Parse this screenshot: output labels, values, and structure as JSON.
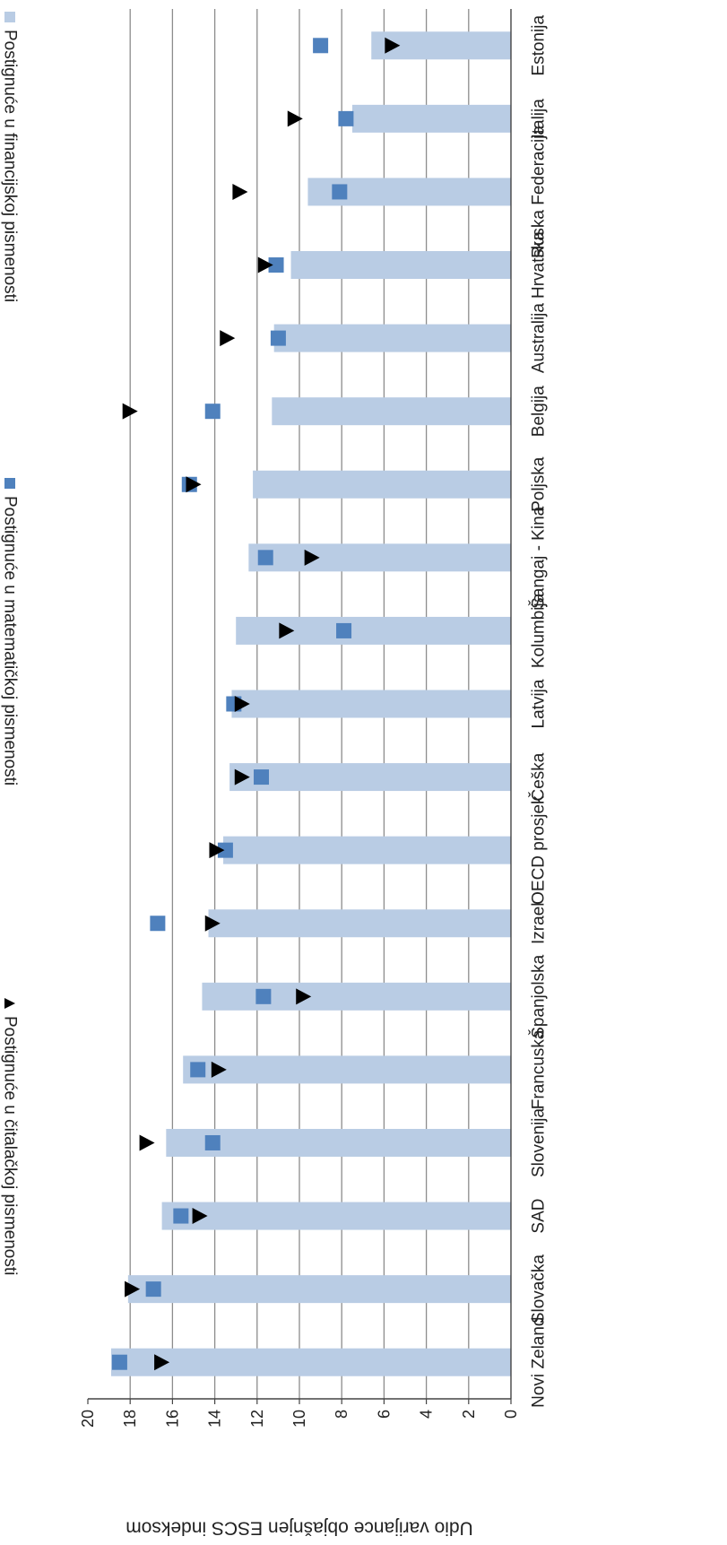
{
  "chart_data": {
    "type": "bar",
    "orientation": "rotated-180",
    "ylabel": "Udio varijance objašnjen ESCS indeksom",
    "xlabel": "",
    "ylim": [
      0,
      20
    ],
    "yticks": [
      "0",
      "2",
      "4",
      "6",
      "8",
      "10",
      "12",
      "14",
      "16",
      "18",
      "20"
    ],
    "grid": true,
    "legend_position": "right",
    "categories": [
      "Estonija",
      "Italija",
      "Ruska Federacija",
      "Hrvatska",
      "Australija",
      "Belgija",
      "Poljska",
      "Šangaj - Kina",
      "Kolumbija",
      "Latvija",
      "Češka",
      "OECD prosjek",
      "Izrael",
      "Španjolska",
      "Francuska",
      "Slovenija",
      "SAD",
      "Slovačka",
      "Novi Zeland"
    ],
    "series": [
      {
        "name": "Postignuće u financijskoj pismenosti",
        "marker": "bar",
        "color": "#b9cce4",
        "values": [
          6.6,
          7.5,
          9.6,
          10.4,
          11.2,
          11.3,
          12.2,
          12.4,
          13.0,
          13.2,
          13.3,
          13.6,
          14.3,
          14.6,
          15.5,
          16.3,
          16.5,
          18.1,
          18.9
        ]
      },
      {
        "name": "Postignuće u matematičkoj pismenosti",
        "marker": "square",
        "color": "#4f81bd",
        "values": [
          9.0,
          7.8,
          8.1,
          11.1,
          11.0,
          14.1,
          15.2,
          11.6,
          7.9,
          13.1,
          11.8,
          13.5,
          16.7,
          11.7,
          14.8,
          14.1,
          15.6,
          16.9,
          18.5
        ]
      },
      {
        "name": "Postignuće u čitalačkoj pismenosti",
        "marker": "triangle",
        "color": "#000000",
        "values": [
          5.6,
          10.2,
          12.8,
          11.6,
          13.4,
          18.0,
          15.0,
          9.4,
          10.6,
          12.7,
          12.7,
          13.9,
          14.1,
          9.8,
          13.8,
          17.2,
          14.7,
          17.9,
          16.5
        ]
      }
    ]
  }
}
